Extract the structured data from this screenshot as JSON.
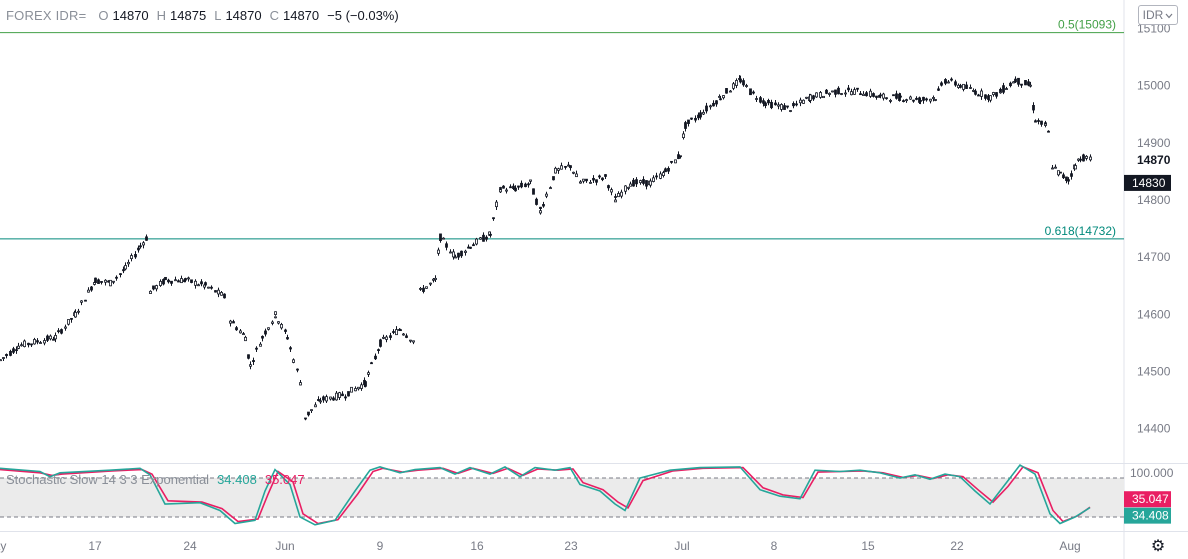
{
  "legend": {
    "symbol": "FOREX IDR=",
    "open_label": "O",
    "open": "14870",
    "high_label": "H",
    "high": "14875",
    "low_label": "L",
    "low": "14870",
    "close_label": "C",
    "close": "14870",
    "change": "−5 (−0.03%)"
  },
  "currency_button": {
    "label": "IDR",
    "icon": "chevron-down-icon"
  },
  "settings_icon": "gear-icon",
  "stochastic": {
    "name": "Stochastic Slow 14 3 3 Exponential",
    "k_value": "34.408",
    "d_value": "35.047"
  },
  "colors": {
    "candle": "#131722",
    "fib_05": "#43a047",
    "fib_0618": "#00897b",
    "stoch_k": "#26a69a",
    "stoch_d": "#e91e63",
    "last_price_bg": "#131722",
    "stoch_band": "#ebebeb"
  },
  "chart_data": [
    {
      "type": "candlestick",
      "title": "",
      "x_tick_labels": [
        "ay",
        "17",
        "24",
        "Jun",
        "9",
        "16",
        "23",
        "Jul",
        "8",
        "15",
        "22",
        "Aug"
      ],
      "y_axis": {
        "ylim": [
          14340,
          15150
        ],
        "ticks": [
          15100,
          15000,
          14900,
          14800,
          14700,
          14600,
          14500,
          14400
        ],
        "tick_labels": [
          "15100",
          "15000",
          "14900",
          "14800",
          "14700",
          "14600",
          "14500",
          "14400"
        ],
        "position": "right"
      },
      "price_labels": [
        {
          "value": 14870,
          "text": "14870",
          "style": "plain"
        },
        {
          "value": 14830,
          "text": "14830",
          "style": "filled"
        }
      ],
      "fib_levels": [
        {
          "ratio": "0.5",
          "value": 15093,
          "label": "0.5(15093)"
        },
        {
          "ratio": "0.618",
          "value": 14732,
          "label": "0.618(14732)"
        }
      ],
      "trend_close": [
        [
          0,
          14520
        ],
        [
          18,
          14545
        ],
        [
          55,
          14560
        ],
        [
          75,
          14600
        ],
        [
          95,
          14660
        ],
        [
          110,
          14655
        ],
        [
          125,
          14680
        ],
        [
          140,
          14720
        ],
        [
          147,
          14735
        ],
        [
          150,
          14640
        ],
        [
          165,
          14660
        ],
        [
          185,
          14660
        ],
        [
          205,
          14650
        ],
        [
          225,
          14630
        ],
        [
          230,
          14590
        ],
        [
          245,
          14560
        ],
        [
          250,
          14510
        ],
        [
          262,
          14560
        ],
        [
          275,
          14600
        ],
        [
          287,
          14560
        ],
        [
          300,
          14480
        ],
        [
          305,
          14420
        ],
        [
          320,
          14450
        ],
        [
          345,
          14460
        ],
        [
          365,
          14480
        ],
        [
          380,
          14550
        ],
        [
          400,
          14575
        ],
        [
          415,
          14550
        ],
        [
          420,
          14640
        ],
        [
          435,
          14660
        ],
        [
          440,
          14735
        ],
        [
          455,
          14700
        ],
        [
          470,
          14720
        ],
        [
          490,
          14740
        ],
        [
          500,
          14820
        ],
        [
          515,
          14820
        ],
        [
          530,
          14830
        ],
        [
          540,
          14780
        ],
        [
          555,
          14850
        ],
        [
          570,
          14860
        ],
        [
          580,
          14830
        ],
        [
          605,
          14840
        ],
        [
          615,
          14800
        ],
        [
          630,
          14830
        ],
        [
          650,
          14830
        ],
        [
          665,
          14850
        ],
        [
          680,
          14880
        ],
        [
          685,
          14930
        ],
        [
          700,
          14950
        ],
        [
          720,
          14980
        ],
        [
          740,
          15010
        ],
        [
          750,
          14990
        ],
        [
          765,
          14970
        ],
        [
          790,
          14960
        ],
        [
          810,
          14980
        ],
        [
          835,
          14990
        ],
        [
          860,
          14990
        ],
        [
          880,
          14980
        ],
        [
          900,
          14980
        ],
        [
          920,
          14975
        ],
        [
          935,
          14980
        ],
        [
          945,
          15010
        ],
        [
          960,
          15000
        ],
        [
          975,
          14990
        ],
        [
          990,
          14980
        ],
        [
          1000,
          14990
        ],
        [
          1015,
          15010
        ],
        [
          1030,
          15000
        ],
        [
          1035,
          14940
        ],
        [
          1045,
          14930
        ],
        [
          1050,
          14910
        ],
        [
          1052,
          14860
        ],
        [
          1060,
          14845
        ],
        [
          1068,
          14835
        ],
        [
          1075,
          14860
        ],
        [
          1080,
          14875
        ],
        [
          1090,
          14872
        ]
      ],
      "gaps_after_x": [
        147,
        225,
        300,
        415,
        1050
      ]
    },
    {
      "type": "line",
      "title": "Stochastic Slow 14 3 3 Exponential",
      "ylim": [
        0,
        100
      ],
      "y_tick_labels": [
        "100.000"
      ],
      "reference_lines": [
        80,
        20
      ],
      "series": [
        {
          "name": "%K",
          "last_value": 34.408,
          "points": [
            [
              0,
              95
            ],
            [
              40,
              90
            ],
            [
              50,
              82
            ],
            [
              60,
              88
            ],
            [
              110,
              92
            ],
            [
              140,
              95
            ],
            [
              150,
              85
            ],
            [
              165,
              40
            ],
            [
              200,
              42
            ],
            [
              220,
              30
            ],
            [
              235,
              10
            ],
            [
              255,
              15
            ],
            [
              265,
              60
            ],
            [
              275,
              93
            ],
            [
              290,
              70
            ],
            [
              300,
              20
            ],
            [
              315,
              8
            ],
            [
              335,
              15
            ],
            [
              355,
              60
            ],
            [
              370,
              92
            ],
            [
              380,
              97
            ],
            [
              400,
              88
            ],
            [
              415,
              93
            ],
            [
              440,
              96
            ],
            [
              455,
              86
            ],
            [
              470,
              96
            ],
            [
              490,
              86
            ],
            [
              505,
              97
            ],
            [
              520,
              82
            ],
            [
              535,
              96
            ],
            [
              555,
              92
            ],
            [
              570,
              96
            ],
            [
              580,
              70
            ],
            [
              600,
              60
            ],
            [
              615,
              40
            ],
            [
              625,
              30
            ],
            [
              640,
              80
            ],
            [
              670,
              92
            ],
            [
              700,
              96
            ],
            [
              740,
              97
            ],
            [
              760,
              62
            ],
            [
              780,
              52
            ],
            [
              800,
              48
            ],
            [
              815,
              92
            ],
            [
              840,
              90
            ],
            [
              860,
              92
            ],
            [
              880,
              88
            ],
            [
              900,
              80
            ],
            [
              915,
              85
            ],
            [
              930,
              78
            ],
            [
              945,
              86
            ],
            [
              960,
              82
            ],
            [
              975,
              60
            ],
            [
              990,
              40
            ],
            [
              1005,
              70
            ],
            [
              1020,
              100
            ],
            [
              1035,
              86
            ],
            [
              1050,
              25
            ],
            [
              1060,
              10
            ],
            [
              1075,
              20
            ],
            [
              1090,
              34.408
            ]
          ]
        },
        {
          "name": "%D",
          "last_value": 35.047,
          "points": [
            [
              0,
              93
            ],
            [
              40,
              88
            ],
            [
              52,
              84
            ],
            [
              62,
              86
            ],
            [
              112,
              91
            ],
            [
              142,
              93
            ],
            [
              152,
              86
            ],
            [
              168,
              45
            ],
            [
              202,
              43
            ],
            [
              222,
              33
            ],
            [
              238,
              13
            ],
            [
              258,
              17
            ],
            [
              268,
              55
            ],
            [
              278,
              90
            ],
            [
              293,
              74
            ],
            [
              303,
              25
            ],
            [
              318,
              10
            ],
            [
              338,
              16
            ],
            [
              358,
              56
            ],
            [
              373,
              90
            ],
            [
              383,
              95
            ],
            [
              403,
              89
            ],
            [
              418,
              92
            ],
            [
              443,
              95
            ],
            [
              458,
              87
            ],
            [
              473,
              95
            ],
            [
              493,
              87
            ],
            [
              508,
              95
            ],
            [
              523,
              84
            ],
            [
              538,
              94
            ],
            [
              558,
              92
            ],
            [
              573,
              94
            ],
            [
              583,
              73
            ],
            [
              603,
              62
            ],
            [
              618,
              43
            ],
            [
              628,
              34
            ],
            [
              643,
              76
            ],
            [
              673,
              91
            ],
            [
              703,
              95
            ],
            [
              743,
              96
            ],
            [
              763,
              65
            ],
            [
              783,
              54
            ],
            [
              803,
              50
            ],
            [
              818,
              89
            ],
            [
              843,
              90
            ],
            [
              863,
              91
            ],
            [
              883,
              88
            ],
            [
              903,
              81
            ],
            [
              918,
              84
            ],
            [
              933,
              79
            ],
            [
              948,
              85
            ],
            [
              963,
              82
            ],
            [
              978,
              62
            ],
            [
              993,
              43
            ],
            [
              1008,
              67
            ],
            [
              1023,
              97
            ],
            [
              1038,
              88
            ],
            [
              1053,
              30
            ],
            [
              1063,
              13
            ],
            [
              1078,
              22
            ],
            [
              1090,
              35.047
            ]
          ]
        }
      ]
    }
  ]
}
